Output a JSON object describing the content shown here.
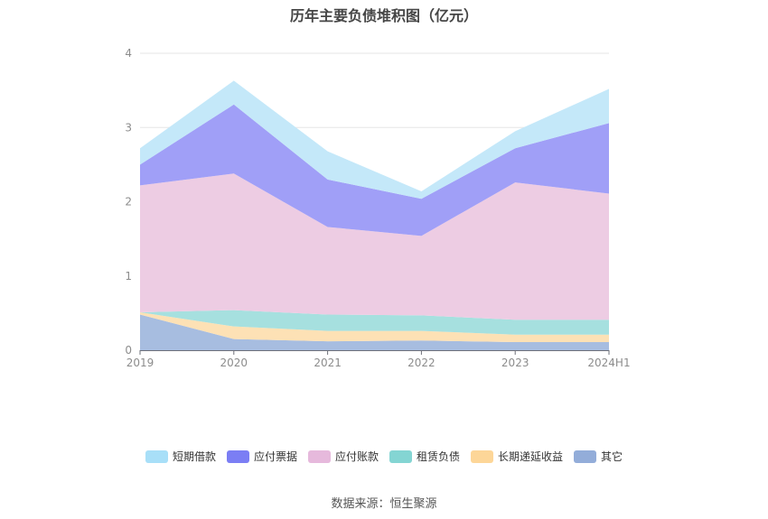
{
  "chart_data": {
    "type": "area",
    "title": "历年主要负债堆积图（亿元）",
    "stacked": true,
    "categories": [
      "2019",
      "2020",
      "2021",
      "2022",
      "2023",
      "2024H1"
    ],
    "ylim": [
      0,
      4
    ],
    "yticks": [
      "0",
      "1",
      "2",
      "3",
      "4"
    ],
    "grid": true,
    "legend_position": "bottom",
    "series": [
      {
        "name": "其它",
        "color": "#a7bde0",
        "values": [
          0.48,
          0.15,
          0.12,
          0.13,
          0.11,
          0.11
        ]
      },
      {
        "name": "长期递延收益",
        "color": "#fde1b5",
        "values": [
          0.03,
          0.17,
          0.14,
          0.13,
          0.1,
          0.1
        ]
      },
      {
        "name": "租赁负债",
        "color": "#a6e0df",
        "values": [
          0.0,
          0.22,
          0.22,
          0.21,
          0.2,
          0.2
        ]
      },
      {
        "name": "应付账款",
        "color": "#edcce3",
        "values": [
          1.71,
          1.84,
          1.18,
          1.07,
          1.85,
          1.7
        ]
      },
      {
        "name": "应付票据",
        "color": "#a09ff7",
        "values": [
          0.28,
          0.93,
          0.64,
          0.5,
          0.46,
          0.95
        ]
      },
      {
        "name": "短期借款",
        "color": "#c4e8f9",
        "values": [
          0.22,
          0.32,
          0.38,
          0.1,
          0.23,
          0.46
        ]
      }
    ],
    "legend_order": [
      "短期借款",
      "应付票据",
      "应付账款",
      "租赁负债",
      "长期递延收益",
      "其它"
    ],
    "legend_colors": {
      "短期借款": "#a8dff8",
      "应付票据": "#7b7ef4",
      "应付账款": "#e6b9dc",
      "租赁负债": "#84d5d3",
      "长期递延收益": "#fdd698",
      "其它": "#93add9"
    }
  },
  "source": "数据来源：恒生聚源"
}
